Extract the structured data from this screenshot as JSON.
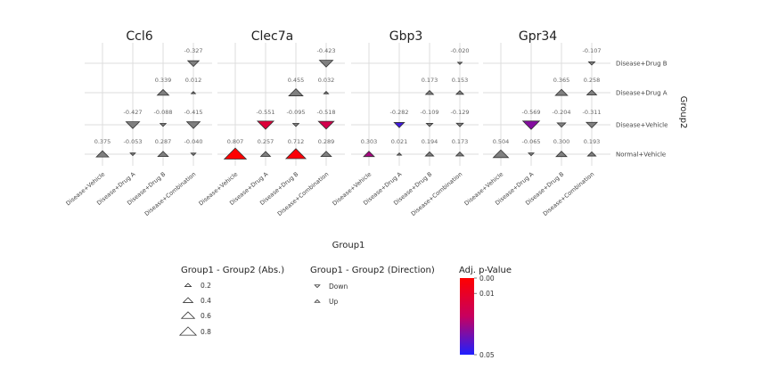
{
  "chart_data": {
    "type": "scatter",
    "facets": [
      "Ccl6",
      "Clec7a",
      "Gbp3",
      "Gpr34"
    ],
    "x_categories": [
      "Disease+Vehicle",
      "Disease+Drug A",
      "Disease+Drug B",
      "Disease+Combination"
    ],
    "y_categories": [
      "Normal+Vehicle",
      "Disease+Vehicle",
      "Disease+Drug A",
      "Disease+Drug B"
    ],
    "xlabel": "Group1",
    "ylabel": "Group2",
    "grid": true,
    "points": {
      "Ccl6": [
        {
          "x": "Disease+Vehicle",
          "y": "Normal+Vehicle",
          "value": 0.375,
          "label": "0.375",
          "dir": "Up",
          "p": null
        },
        {
          "x": "Disease+Drug A",
          "y": "Normal+Vehicle",
          "value": -0.053,
          "label": "-0.053",
          "dir": "Down",
          "p": null
        },
        {
          "x": "Disease+Drug A",
          "y": "Disease+Vehicle",
          "value": -0.427,
          "label": "-0.427",
          "dir": "Down",
          "p": null
        },
        {
          "x": "Disease+Drug B",
          "y": "Normal+Vehicle",
          "value": 0.287,
          "label": "0.287",
          "dir": "Up",
          "p": null
        },
        {
          "x": "Disease+Drug B",
          "y": "Disease+Vehicle",
          "value": -0.088,
          "label": "-0.088",
          "dir": "Down",
          "p": null
        },
        {
          "x": "Disease+Drug B",
          "y": "Disease+Drug A",
          "value": 0.339,
          "label": "0.339",
          "dir": "Up",
          "p": null
        },
        {
          "x": "Disease+Combination",
          "y": "Normal+Vehicle",
          "value": -0.04,
          "label": "-0.040",
          "dir": "Down",
          "p": null
        },
        {
          "x": "Disease+Combination",
          "y": "Disease+Vehicle",
          "value": -0.415,
          "label": "-0.415",
          "dir": "Down",
          "p": null
        },
        {
          "x": "Disease+Combination",
          "y": "Disease+Drug A",
          "value": 0.012,
          "label": "0.012",
          "dir": "Up",
          "p": null
        },
        {
          "x": "Disease+Combination",
          "y": "Disease+Drug B",
          "value": -0.327,
          "label": "-0.327",
          "dir": "Down",
          "p": null
        }
      ],
      "Clec7a": [
        {
          "x": "Disease+Vehicle",
          "y": "Normal+Vehicle",
          "value": 0.807,
          "label": "0.807",
          "dir": "Up",
          "p": 0.0
        },
        {
          "x": "Disease+Drug A",
          "y": "Normal+Vehicle",
          "value": 0.257,
          "label": "0.257",
          "dir": "Up",
          "p": null
        },
        {
          "x": "Disease+Drug A",
          "y": "Disease+Vehicle",
          "value": -0.551,
          "label": "-0.551",
          "dir": "Down",
          "p": 0.015
        },
        {
          "x": "Disease+Drug B",
          "y": "Normal+Vehicle",
          "value": 0.712,
          "label": "0.712",
          "dir": "Up",
          "p": 0.002
        },
        {
          "x": "Disease+Drug B",
          "y": "Disease+Vehicle",
          "value": -0.095,
          "label": "-0.095",
          "dir": "Down",
          "p": null
        },
        {
          "x": "Disease+Drug B",
          "y": "Disease+Drug A",
          "value": 0.455,
          "label": "0.455",
          "dir": "Up",
          "p": null
        },
        {
          "x": "Disease+Combination",
          "y": "Normal+Vehicle",
          "value": 0.289,
          "label": "0.289",
          "dir": "Up",
          "p": null
        },
        {
          "x": "Disease+Combination",
          "y": "Disease+Vehicle",
          "value": -0.518,
          "label": "-0.518",
          "dir": "Down",
          "p": 0.02
        },
        {
          "x": "Disease+Combination",
          "y": "Disease+Drug A",
          "value": 0.032,
          "label": "0.032",
          "dir": "Up",
          "p": null
        },
        {
          "x": "Disease+Combination",
          "y": "Disease+Drug B",
          "value": -0.423,
          "label": "-0.423",
          "dir": "Down",
          "p": null
        }
      ],
      "Gbp3": [
        {
          "x": "Disease+Vehicle",
          "y": "Normal+Vehicle",
          "value": 0.303,
          "label": "0.303",
          "dir": "Up",
          "p": 0.03
        },
        {
          "x": "Disease+Drug A",
          "y": "Normal+Vehicle",
          "value": 0.021,
          "label": "0.021",
          "dir": "Up",
          "p": null
        },
        {
          "x": "Disease+Drug A",
          "y": "Disease+Vehicle",
          "value": -0.282,
          "label": "-0.282",
          "dir": "Down",
          "p": 0.045
        },
        {
          "x": "Disease+Drug B",
          "y": "Normal+Vehicle",
          "value": 0.194,
          "label": "0.194",
          "dir": "Up",
          "p": null
        },
        {
          "x": "Disease+Drug B",
          "y": "Disease+Vehicle",
          "value": -0.109,
          "label": "-0.109",
          "dir": "Down",
          "p": null
        },
        {
          "x": "Disease+Drug B",
          "y": "Disease+Drug A",
          "value": 0.173,
          "label": "0.173",
          "dir": "Up",
          "p": null
        },
        {
          "x": "Disease+Combination",
          "y": "Normal+Vehicle",
          "value": 0.173,
          "label": "0.173",
          "dir": "Up",
          "p": null
        },
        {
          "x": "Disease+Combination",
          "y": "Disease+Vehicle",
          "value": -0.129,
          "label": "-0.129",
          "dir": "Down",
          "p": null
        },
        {
          "x": "Disease+Combination",
          "y": "Disease+Drug A",
          "value": 0.153,
          "label": "0.153",
          "dir": "Up",
          "p": null
        },
        {
          "x": "Disease+Combination",
          "y": "Disease+Drug B",
          "value": -0.02,
          "label": "-0.020",
          "dir": "Down",
          "p": null
        }
      ],
      "Gpr34": [
        {
          "x": "Disease+Vehicle",
          "y": "Normal+Vehicle",
          "value": 0.504,
          "label": "0.504",
          "dir": "Up",
          "p": null
        },
        {
          "x": "Disease+Drug A",
          "y": "Normal+Vehicle",
          "value": -0.065,
          "label": "-0.065",
          "dir": "Down",
          "p": null
        },
        {
          "x": "Disease+Drug A",
          "y": "Disease+Vehicle",
          "value": -0.569,
          "label": "-0.569",
          "dir": "Down",
          "p": 0.035
        },
        {
          "x": "Disease+Drug B",
          "y": "Normal+Vehicle",
          "value": 0.3,
          "label": "0.300",
          "dir": "Up",
          "p": null
        },
        {
          "x": "Disease+Drug B",
          "y": "Disease+Vehicle",
          "value": -0.204,
          "label": "-0.204",
          "dir": "Down",
          "p": null
        },
        {
          "x": "Disease+Drug B",
          "y": "Disease+Drug A",
          "value": 0.365,
          "label": "0.365",
          "dir": "Up",
          "p": null
        },
        {
          "x": "Disease+Combination",
          "y": "Normal+Vehicle",
          "value": 0.193,
          "label": "0.193",
          "dir": "Up",
          "p": null
        },
        {
          "x": "Disease+Combination",
          "y": "Disease+Vehicle",
          "value": -0.311,
          "label": "-0.311",
          "dir": "Down",
          "p": null
        },
        {
          "x": "Disease+Combination",
          "y": "Disease+Drug A",
          "value": 0.258,
          "label": "0.258",
          "dir": "Up",
          "p": null
        },
        {
          "x": "Disease+Combination",
          "y": "Disease+Drug B",
          "value": -0.107,
          "label": "-0.107",
          "dir": "Down",
          "p": null
        }
      ]
    },
    "legend": {
      "size": {
        "title": "Group1 - Group2 (Abs.)",
        "values": [
          0.2,
          0.4,
          0.6,
          0.8
        ],
        "labels": [
          "0.2",
          "0.4",
          "0.6",
          "0.8"
        ]
      },
      "direction": {
        "title": "Group1 - Group2 (Direction)",
        "items": [
          "Down",
          "Up"
        ]
      },
      "color": {
        "title": "Adj. p-Value",
        "ticks": [
          "0.00",
          "0.01",
          "0.05"
        ],
        "range": [
          0,
          0.05
        ],
        "low_color": "#ff0000",
        "high_color": "#1f1fff"
      },
      "placement": "bottom"
    },
    "colors": {
      "nonsignificant": "#7f7f7f",
      "outline": "#333333"
    }
  }
}
